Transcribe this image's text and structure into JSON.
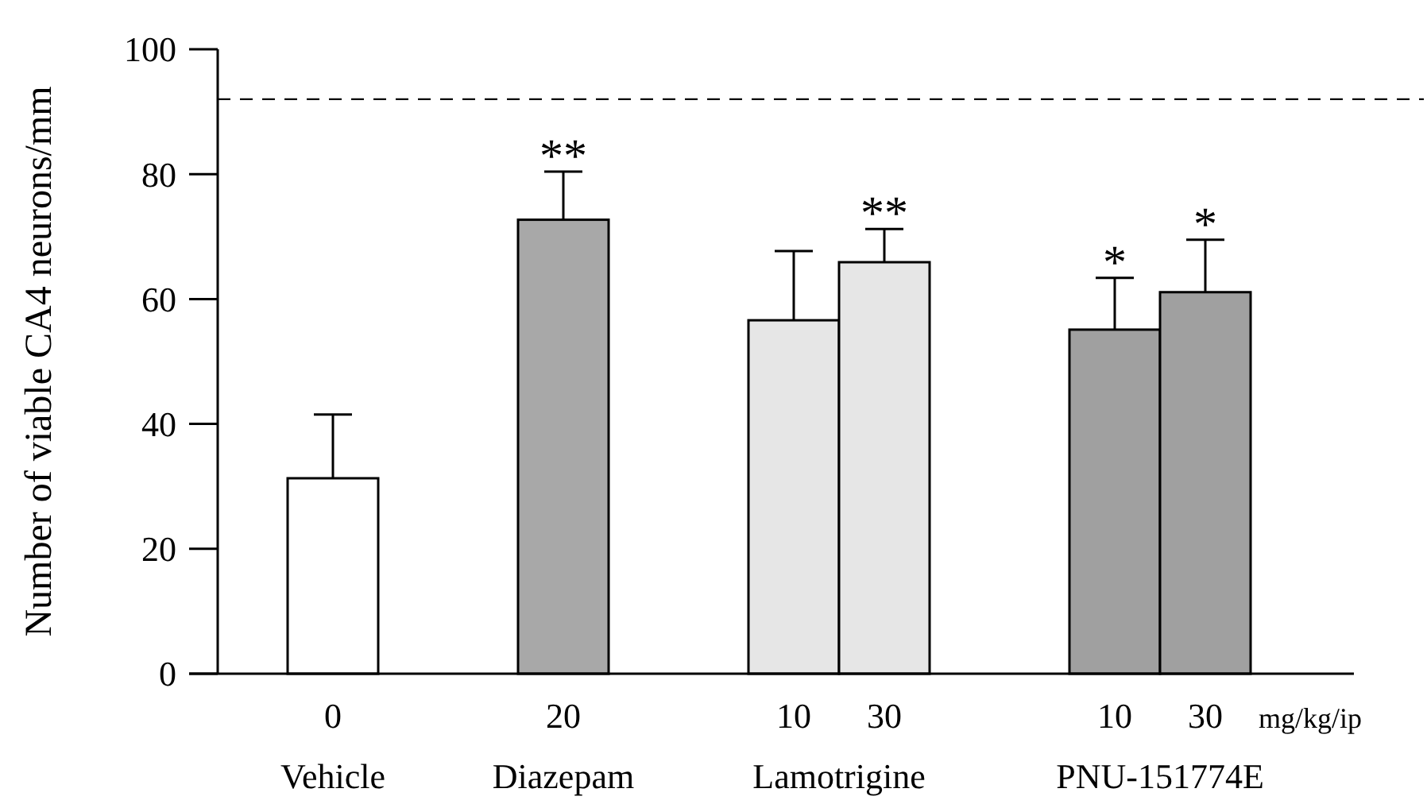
{
  "chart_data": {
    "type": "bar",
    "ylabel": "Number of viable CA4 neurons/mm",
    "categories": [
      "0",
      null,
      "20",
      null,
      "10",
      "30",
      null,
      "10",
      "30"
    ],
    "values": [
      31.3,
      null,
      72.7,
      null,
      56.6,
      65.9,
      null,
      55.1,
      61.1
    ],
    "errors": [
      10.2,
      null,
      7.7,
      null,
      11.1,
      5.3,
      null,
      8.3,
      8.4
    ],
    "value_labels": [
      null,
      null,
      "**",
      null,
      null,
      "**",
      null,
      "*",
      "*"
    ],
    "colors": [
      "#ffffff",
      null,
      "#a8a8a8",
      null,
      "#e6e6e6",
      "#e6e6e6",
      null,
      "#a0a0a0",
      "#a0a0a0"
    ],
    "ylim": [
      0,
      100
    ],
    "yticks": [
      0,
      20,
      40,
      60,
      80,
      100
    ],
    "ref_lines": [
      {
        "axis": "y",
        "value": 92,
        "line_style": "dashed"
      }
    ],
    "annotations": [
      "Vehicle",
      "Diazepam",
      "Lamotrigine",
      "PNU-151774E",
      "mg/kg/ip"
    ]
  }
}
